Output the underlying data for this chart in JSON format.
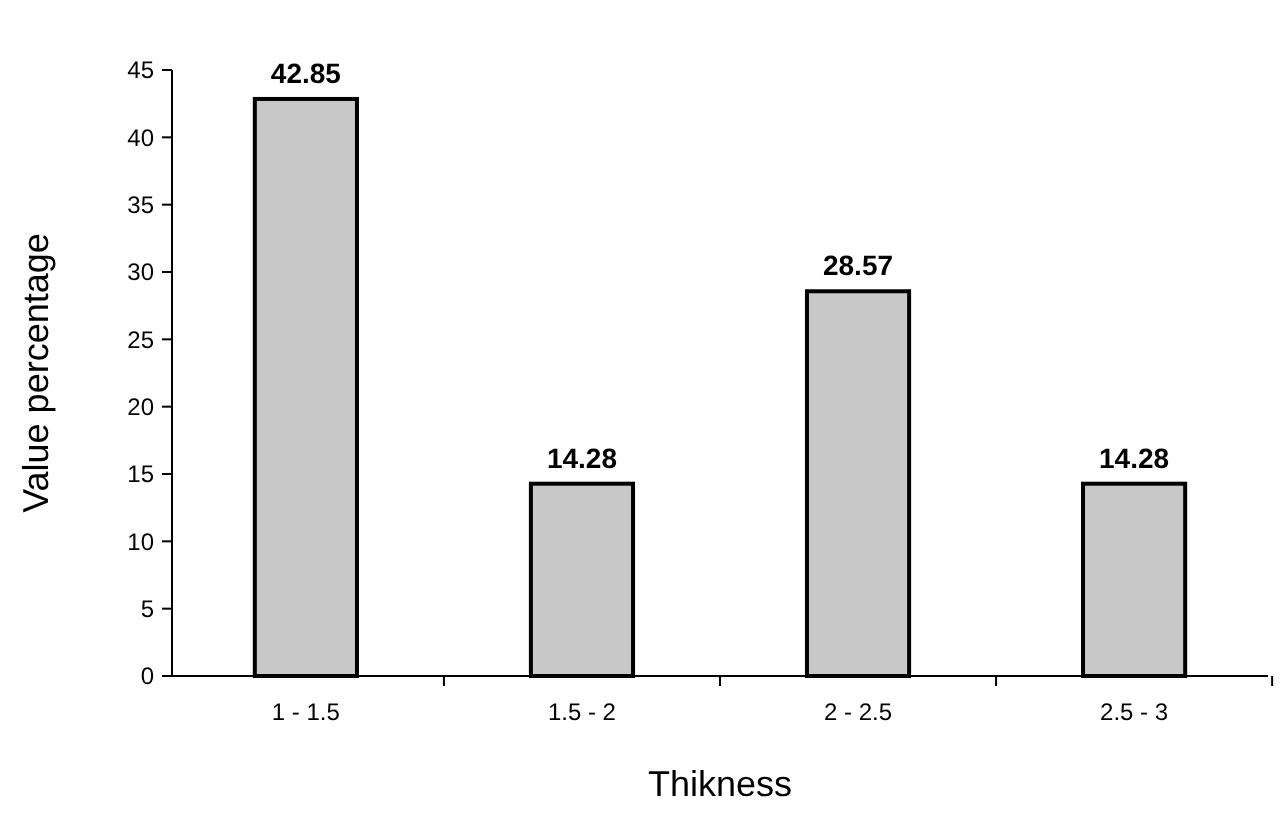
{
  "chart_data": {
    "type": "bar",
    "xlabel": "Thikness",
    "ylabel": "Value percentage",
    "categories": [
      "1 - 1.5",
      "1.5 - 2",
      "2 - 2.5",
      "2.5 - 3"
    ],
    "values": [
      42.85,
      14.28,
      28.57,
      14.28
    ],
    "color": "#c8c8c8",
    "ylim": [
      0,
      45
    ],
    "yticks": [
      0,
      5,
      10,
      15,
      20,
      25,
      30,
      35,
      40,
      45
    ],
    "data_labels": true,
    "grid": false
  }
}
